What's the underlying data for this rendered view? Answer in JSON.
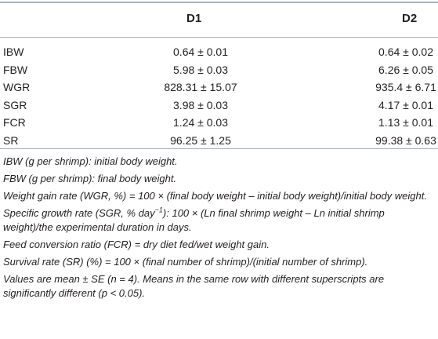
{
  "table": {
    "columns": [
      "D1",
      "D2"
    ],
    "rows": [
      {
        "label": "IBW",
        "d1": "0.64 ± 0.01",
        "d2": "0.64 ± 0.02"
      },
      {
        "label": "FBW",
        "d1": "5.98 ± 0.03",
        "d2": "6.26 ± 0.05"
      },
      {
        "label": "WGR",
        "d1": "828.31 ± 15.07",
        "d2": "935.4 ± 6.71"
      },
      {
        "label": "SGR",
        "d1": "3.98 ± 0.03",
        "d2": "4.17 ± 0.01"
      },
      {
        "label": "FCR",
        "d1": "1.24 ± 0.03",
        "d2": "1.13 ± 0.01"
      },
      {
        "label": "SR",
        "d1": "96.25 ± 1.25",
        "d2": "99.38 ± 0.63"
      }
    ]
  },
  "notes": {
    "ibw": "IBW (g per shrimp): initial body weight.",
    "fbw": "FBW (g per shrimp): final body weight.",
    "wgr": "Weight gain rate (WGR, %) = 100 × (final body weight – initial body weight)/initial body weight.",
    "sgr_pre": "Specific growth rate (SGR, % day",
    "sgr_sup": "−1",
    "sgr_post": "): 100 × (Ln final shrimp weight – Ln initial shrimp weight)/the experimental duration in days.",
    "fcr": "Feed conversion ratio (FCR) = dry diet fed/wet weight gain.",
    "sr": "Survival rate (SR) (%) = 100 × (final number of shrimp)/(initial number of shrimp).",
    "values": "Values are mean ± SE (n = 4). Means in the same row with different superscripts are significantly different (p < 0.05)."
  }
}
